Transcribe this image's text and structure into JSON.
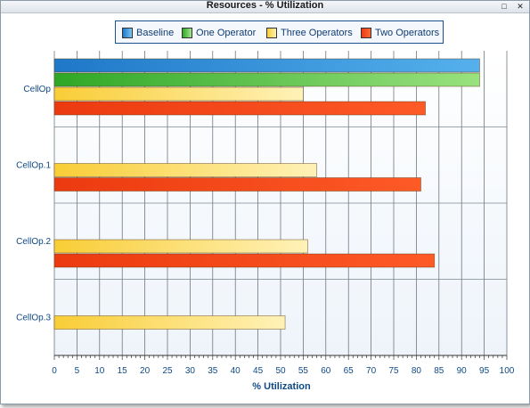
{
  "window": {
    "title": "Resources - % Utilization"
  },
  "legend": [
    {
      "label": "Baseline",
      "color": "#2f8fd8"
    },
    {
      "label": "One Operator",
      "color": "#42b233"
    },
    {
      "label": "Three Operators",
      "color": "#fcd54a"
    },
    {
      "label": "Two Operators",
      "color": "#f04e1d"
    }
  ],
  "chart_data": {
    "type": "bar",
    "orientation": "horizontal",
    "title": "Resources - % Utilization",
    "xlabel": "% Utilization",
    "ylabel": "",
    "xlim": [
      0,
      100
    ],
    "x_ticks": [
      0,
      5,
      10,
      15,
      20,
      25,
      30,
      35,
      40,
      45,
      50,
      55,
      60,
      65,
      70,
      75,
      80,
      85,
      90,
      95,
      100
    ],
    "categories": [
      "CellOp",
      "CellOp.1",
      "CellOp.2",
      "CellOp.3"
    ],
    "series": [
      {
        "name": "Baseline",
        "color": "#2f8fd8",
        "values": [
          94,
          null,
          null,
          null
        ]
      },
      {
        "name": "One Operator",
        "color": "#42b233",
        "values": [
          94,
          null,
          null,
          null
        ]
      },
      {
        "name": "Three Operators",
        "color": "#fcd54a",
        "values": [
          55,
          58,
          56,
          51
        ]
      },
      {
        "name": "Two Operators",
        "color": "#f04e1d",
        "values": [
          82,
          81,
          84,
          null
        ]
      }
    ],
    "grid": true,
    "legend_position": "top"
  }
}
